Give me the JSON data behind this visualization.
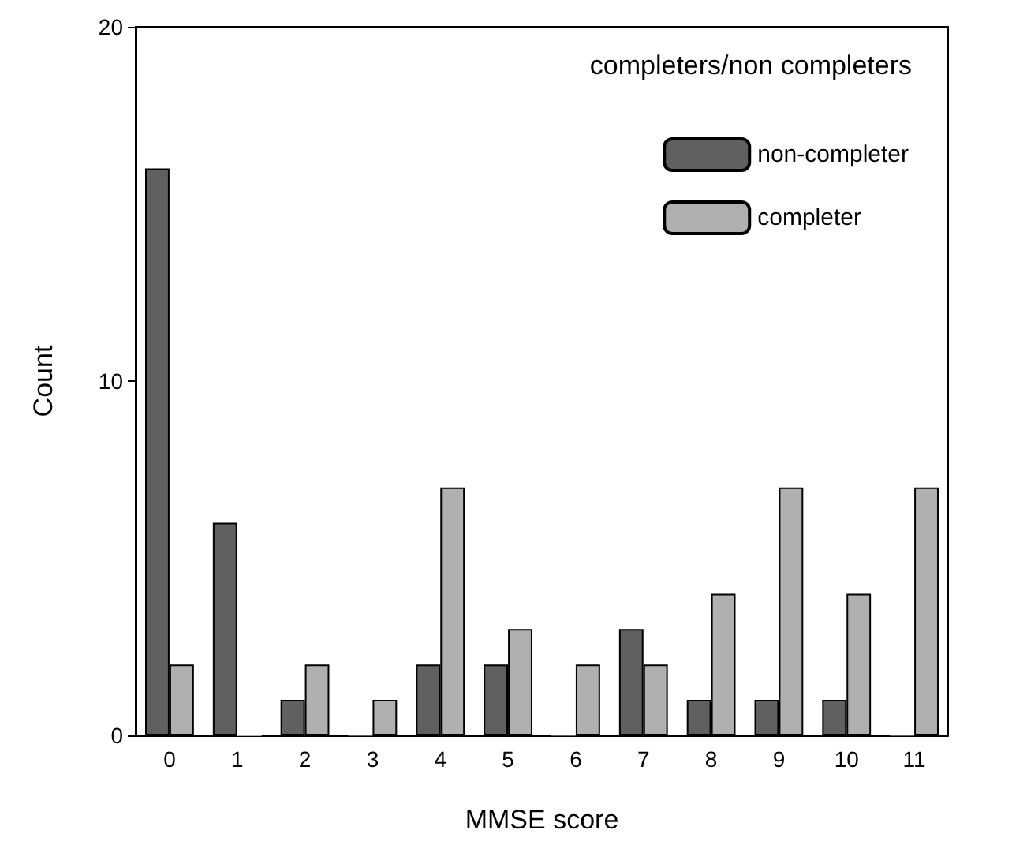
{
  "chart_data": {
    "type": "bar",
    "xlabel": "MMSE score",
    "ylabel": "Count",
    "legend_title": "completers/non completers",
    "legend": "top right",
    "grid": false,
    "categories": [
      "0",
      "1",
      "2",
      "3",
      "4",
      "5",
      "6",
      "7",
      "8",
      "9",
      "10",
      "11"
    ],
    "series": [
      {
        "name": "non-completer",
        "color": "#606060",
        "values": [
          16,
          6,
          1,
          0,
          2,
          2,
          0,
          3,
          1,
          1,
          1,
          0
        ]
      },
      {
        "name": "completer",
        "color": "#b0b0b0",
        "values": [
          2,
          0,
          2,
          1,
          7,
          3,
          2,
          2,
          4,
          7,
          4,
          7
        ]
      }
    ],
    "ylim": [
      0,
      20
    ],
    "yticks": [
      0,
      10,
      20
    ]
  }
}
